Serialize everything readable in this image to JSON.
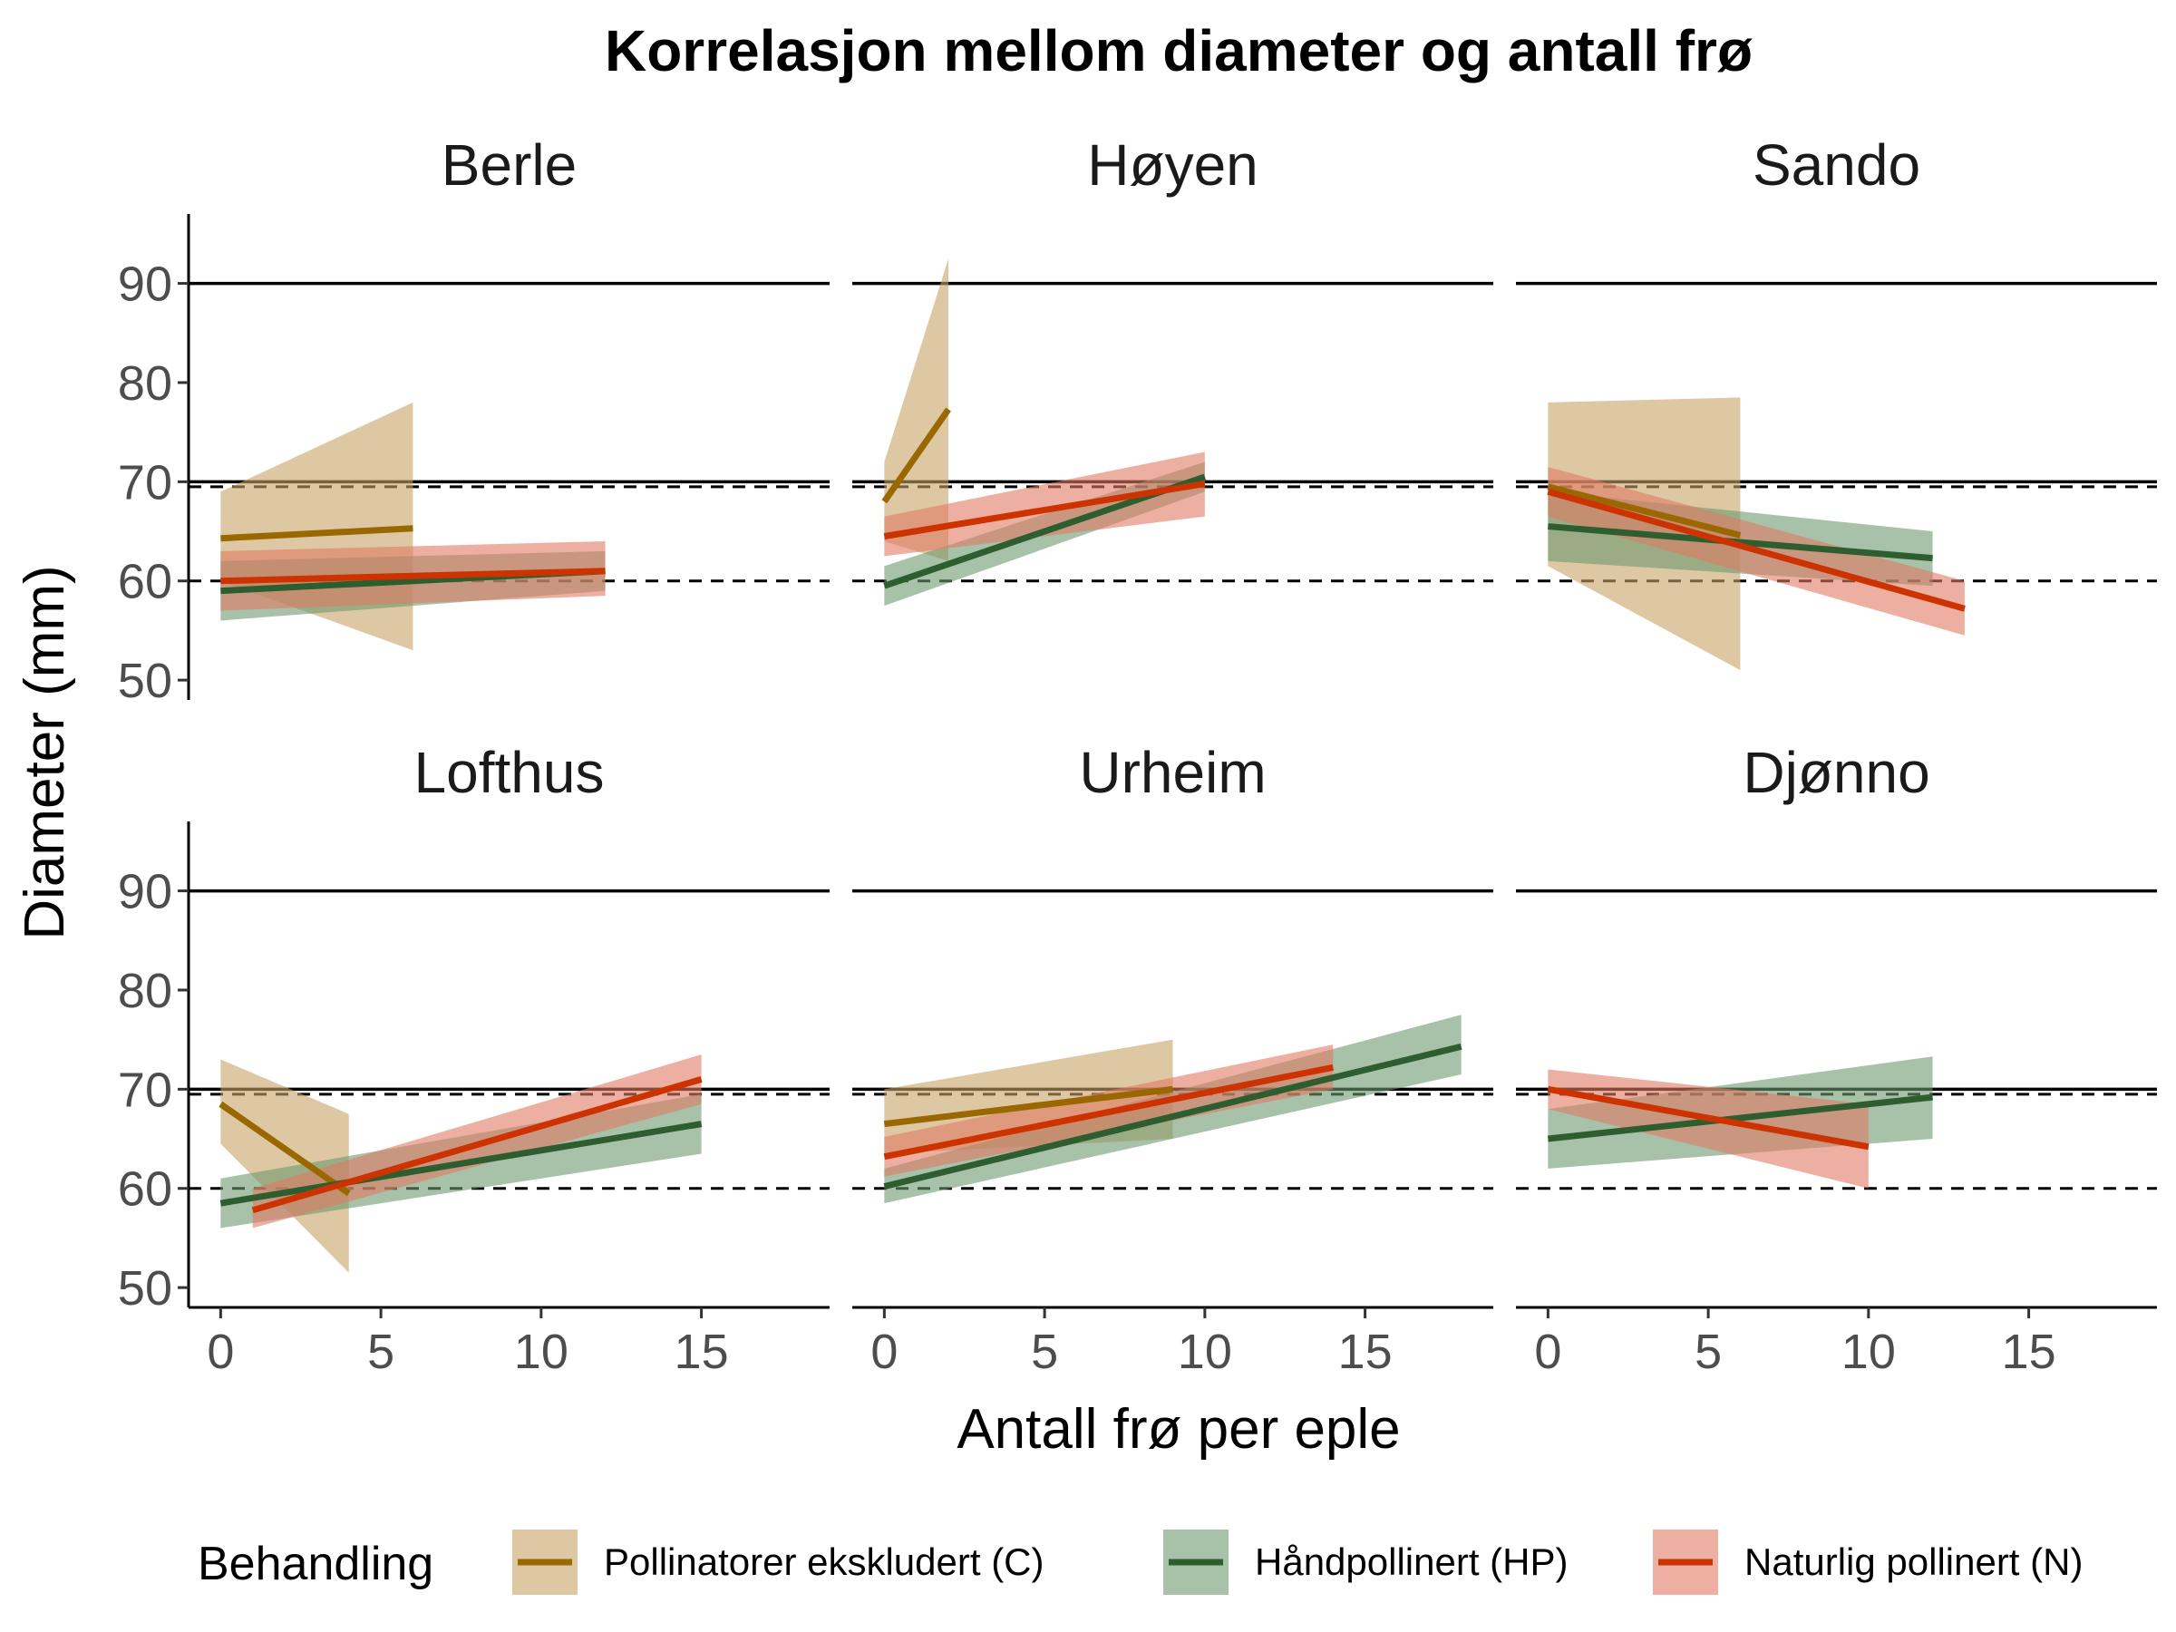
{
  "chart_data": {
    "type": "line",
    "title": "Korrelasjon mellom diameter og antall frø",
    "xlabel": "Antall frø per eple",
    "ylabel": "Diameter (mm)",
    "xlim": [
      -1,
      19
    ],
    "ylim": [
      48,
      97
    ],
    "x_ticks": [
      0,
      5,
      10,
      15
    ],
    "y_ticks": [
      50,
      60,
      70,
      80,
      90
    ],
    "hlines_solid": [
      70,
      90
    ],
    "hlines_dashed": [
      60,
      69.5
    ],
    "legend": {
      "title": "Behandling",
      "position": "bottom",
      "entries": [
        {
          "key": "C",
          "label": "Pollinatorer ekskludert (C)",
          "color": "#9a6800",
          "fill": "#c8a468"
        },
        {
          "key": "HP",
          "label": "Håndpollinert (HP)",
          "color": "#2e5e30",
          "fill": "#6e9a72"
        },
        {
          "key": "N",
          "label": "Naturlig pollinert (N)",
          "color": "#cc3300",
          "fill": "#e07a62"
        }
      ]
    },
    "panels": [
      {
        "name": "Berle",
        "series": [
          {
            "key": "C",
            "x": [
              0,
              6
            ],
            "y": [
              64.3,
              65.3
            ],
            "lower": [
              60,
              53
            ],
            "upper": [
              69,
              78
            ]
          },
          {
            "key": "HP",
            "x": [
              0,
              12
            ],
            "y": [
              59,
              61
            ],
            "lower": [
              56,
              59
            ],
            "upper": [
              62,
              63
            ]
          },
          {
            "key": "N",
            "x": [
              0,
              12
            ],
            "y": [
              60,
              61
            ],
            "lower": [
              57,
              58.5
            ],
            "upper": [
              63,
              64
            ]
          }
        ]
      },
      {
        "name": "Høyen",
        "series": [
          {
            "key": "C",
            "x": [
              0,
              2
            ],
            "y": [
              68,
              77.3
            ],
            "lower": [
              64,
              62
            ],
            "upper": [
              72,
              92.5
            ]
          },
          {
            "key": "HP",
            "x": [
              0,
              10
            ],
            "y": [
              59.5,
              70.5
            ],
            "lower": [
              57.5,
              69
            ],
            "upper": [
              61.5,
              72
            ]
          },
          {
            "key": "N",
            "x": [
              0,
              10
            ],
            "y": [
              64.5,
              69.8
            ],
            "lower": [
              62.5,
              66.5
            ],
            "upper": [
              66.5,
              73
            ]
          }
        ]
      },
      {
        "name": "Sando",
        "series": [
          {
            "key": "C",
            "x": [
              0,
              6
            ],
            "y": [
              69.5,
              64.6
            ],
            "lower": [
              61.5,
              51
            ],
            "upper": [
              78,
              78.5
            ]
          },
          {
            "key": "HP",
            "x": [
              0,
              12
            ],
            "y": [
              65.5,
              62.3
            ],
            "lower": [
              62,
              59.5
            ],
            "upper": [
              69,
              65
            ]
          },
          {
            "key": "N",
            "x": [
              0,
              13
            ],
            "y": [
              69,
              57.2
            ],
            "lower": [
              66.5,
              54.5
            ],
            "upper": [
              71.5,
              60
            ]
          }
        ]
      },
      {
        "name": "Lofthus",
        "series": [
          {
            "key": "C",
            "x": [
              0,
              4
            ],
            "y": [
              68.5,
              59.5
            ],
            "lower": [
              64.5,
              51.5
            ],
            "upper": [
              73,
              67.5
            ]
          },
          {
            "key": "HP",
            "x": [
              0,
              15
            ],
            "y": [
              58.5,
              66.5
            ],
            "lower": [
              56,
              63.5
            ],
            "upper": [
              61,
              69.5
            ]
          },
          {
            "key": "N",
            "x": [
              1,
              15
            ],
            "y": [
              57.8,
              71
            ],
            "lower": [
              56,
              68.5
            ],
            "upper": [
              60,
              73.5
            ]
          }
        ]
      },
      {
        "name": "Urheim",
        "series": [
          {
            "key": "C",
            "x": [
              0,
              9
            ],
            "y": [
              66.5,
              70
            ],
            "lower": [
              63.5,
              65
            ],
            "upper": [
              70,
              75
            ]
          },
          {
            "key": "HP",
            "x": [
              0,
              18
            ],
            "y": [
              60.2,
              74.3
            ],
            "lower": [
              58.5,
              71.5
            ],
            "upper": [
              62,
              77.5
            ]
          },
          {
            "key": "N",
            "x": [
              0,
              14
            ],
            "y": [
              63.2,
              72.2
            ],
            "lower": [
              61.2,
              70
            ],
            "upper": [
              65.2,
              74.5
            ]
          }
        ]
      },
      {
        "name": "Djønno",
        "series": [
          {
            "key": "HP",
            "x": [
              0,
              12
            ],
            "y": [
              65,
              69.2
            ],
            "lower": [
              62,
              65
            ],
            "upper": [
              68,
              73.3
            ]
          },
          {
            "key": "N",
            "x": [
              0,
              10
            ],
            "y": [
              70,
              64.2
            ],
            "lower": [
              68,
              60
            ],
            "upper": [
              72,
              68.5
            ]
          }
        ]
      }
    ]
  }
}
